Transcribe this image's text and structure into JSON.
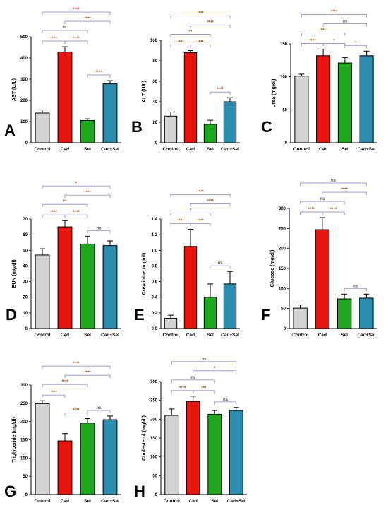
{
  "colors": {
    "Control": "#d3d3d3",
    "Cad": "#e8150f",
    "Sel": "#1ea81e",
    "Cad+Sel": "#2a8db0",
    "bracket": "#9d8fd6",
    "sig_red": "#e31a1c",
    "sig_brown": "#a0521a",
    "sig_gray": "#555555"
  },
  "chart_data": [
    {
      "panel": "A",
      "type": "bar",
      "categories": [
        "Control",
        "Cad",
        "Sel",
        "Cad+Sel"
      ],
      "values": [
        140,
        428,
        105,
        278
      ],
      "errors": [
        15,
        25,
        8,
        15
      ],
      "ylabel": "AST (U/L)",
      "ylim": [
        0,
        500
      ],
      "yticks": [
        0,
        100,
        200,
        300,
        400,
        500
      ],
      "comparisons": [
        {
          "a": 0,
          "b": 1,
          "label": "****",
          "color": "sig_brown"
        },
        {
          "a": 1,
          "b": 2,
          "label": "****",
          "color": "sig_brown"
        },
        {
          "a": 2,
          "b": 3,
          "label": "****",
          "color": "sig_brown"
        },
        {
          "a": 0,
          "b": 2,
          "label": "**",
          "color": "sig_brown"
        },
        {
          "a": 1,
          "b": 3,
          "label": "****",
          "color": "sig_brown"
        },
        {
          "a": 0,
          "b": 3,
          "label": "****",
          "color": "sig_red"
        }
      ]
    },
    {
      "panel": "B",
      "type": "bar",
      "categories": [
        "Control",
        "Cad",
        "Sel",
        "Cad+Sel"
      ],
      "values": [
        26,
        88,
        18,
        40
      ],
      "errors": [
        4,
        2,
        4,
        4
      ],
      "ylabel": "ALT (U/L)",
      "ylim": [
        0,
        100
      ],
      "yticks": [
        0,
        20,
        40,
        60,
        80,
        100
      ],
      "comparisons": [
        {
          "a": 0,
          "b": 1,
          "label": "****",
          "color": "sig_brown"
        },
        {
          "a": 1,
          "b": 2,
          "label": "****",
          "color": "sig_brown"
        },
        {
          "a": 2,
          "b": 3,
          "label": "****",
          "color": "sig_brown"
        },
        {
          "a": 0,
          "b": 2,
          "label": "**",
          "color": "sig_brown"
        },
        {
          "a": 1,
          "b": 3,
          "label": "****",
          "color": "sig_brown"
        },
        {
          "a": 0,
          "b": 3,
          "label": "****",
          "color": "sig_brown"
        }
      ]
    },
    {
      "panel": "C",
      "type": "bar",
      "categories": [
        "Control",
        "Cad",
        "Sel",
        "Cad+Sel"
      ],
      "values": [
        101,
        132,
        121,
        132
      ],
      "errors": [
        3,
        10,
        8,
        7
      ],
      "ylabel": "Urea (mg/dl)",
      "ylim": [
        0,
        150
      ],
      "yticks": [
        0,
        50,
        100,
        150
      ],
      "comparisons": [
        {
          "a": 0,
          "b": 1,
          "label": "****",
          "color": "sig_brown"
        },
        {
          "a": 1,
          "b": 2,
          "label": "*",
          "color": "sig_brown"
        },
        {
          "a": 2,
          "b": 3,
          "label": "*",
          "color": "sig_brown"
        },
        {
          "a": 0,
          "b": 2,
          "label": "***",
          "color": "sig_brown"
        },
        {
          "a": 1,
          "b": 3,
          "label": "ns",
          "color": "sig_gray"
        },
        {
          "a": 0,
          "b": 3,
          "label": "****",
          "color": "sig_brown"
        }
      ]
    },
    {
      "panel": "D",
      "type": "bar",
      "categories": [
        "Control",
        "Cad",
        "Sel",
        "Cad+Sel"
      ],
      "values": [
        47,
        65,
        54,
        53
      ],
      "errors": [
        4,
        4,
        5,
        3
      ],
      "ylabel": "BUN (mg/dl)",
      "ylim": [
        0,
        70
      ],
      "yticks": [
        0,
        10,
        20,
        30,
        40,
        50,
        60,
        70
      ],
      "comparisons": [
        {
          "a": 0,
          "b": 1,
          "label": "****",
          "color": "sig_brown"
        },
        {
          "a": 1,
          "b": 2,
          "label": "****",
          "color": "sig_brown"
        },
        {
          "a": 2,
          "b": 3,
          "label": "ns",
          "color": "sig_gray"
        },
        {
          "a": 0,
          "b": 2,
          "label": "**",
          "color": "sig_brown"
        },
        {
          "a": 1,
          "b": 3,
          "label": "****",
          "color": "sig_brown"
        },
        {
          "a": 0,
          "b": 3,
          "label": "*",
          "color": "sig_brown"
        }
      ]
    },
    {
      "panel": "E",
      "type": "bar",
      "categories": [
        "Control",
        "Cad",
        "Sel",
        "Cad+Sel"
      ],
      "values": [
        0.13,
        1.05,
        0.4,
        0.57
      ],
      "errors": [
        0.04,
        0.22,
        0.17,
        0.16
      ],
      "ylabel": "Creatinine (mg/dl)",
      "ylim": [
        0,
        1.4
      ],
      "yticks": [
        0.0,
        0.2,
        0.4,
        0.6,
        0.8,
        1.0,
        1.2,
        1.4
      ],
      "comparisons": [
        {
          "a": 0,
          "b": 1,
          "label": "****",
          "color": "sig_brown"
        },
        {
          "a": 1,
          "b": 2,
          "label": "****",
          "color": "sig_brown"
        },
        {
          "a": 2,
          "b": 3,
          "label": "ns",
          "color": "sig_gray"
        },
        {
          "a": 0,
          "b": 2,
          "label": "*",
          "color": "sig_brown"
        },
        {
          "a": 1,
          "b": 3,
          "label": "****",
          "color": "sig_brown"
        },
        {
          "a": 0,
          "b": 3,
          "label": "****",
          "color": "sig_brown"
        }
      ]
    },
    {
      "panel": "F",
      "type": "bar",
      "categories": [
        "Control",
        "Cad",
        "Sel",
        "Cad+Sel"
      ],
      "values": [
        51,
        247,
        74,
        76
      ],
      "errors": [
        8,
        30,
        12,
        10
      ],
      "ylabel": "Glucose (mg/dl)",
      "ylim": [
        0,
        300
      ],
      "yticks": [
        0,
        50,
        100,
        150,
        200,
        250,
        300
      ],
      "comparisons": [
        {
          "a": 0,
          "b": 1,
          "label": "****",
          "color": "sig_brown"
        },
        {
          "a": 1,
          "b": 2,
          "label": "****",
          "color": "sig_brown"
        },
        {
          "a": 2,
          "b": 3,
          "label": "ns",
          "color": "sig_gray"
        },
        {
          "a": 0,
          "b": 2,
          "label": "ns",
          "color": "sig_gray"
        },
        {
          "a": 1,
          "b": 3,
          "label": "****",
          "color": "sig_brown"
        },
        {
          "a": 0,
          "b": 3,
          "label": "ns",
          "color": "sig_gray"
        }
      ]
    },
    {
      "panel": "G",
      "type": "bar",
      "categories": [
        "Control",
        "Cad",
        "Sel",
        "Cad+Sel"
      ],
      "values": [
        249,
        147,
        196,
        205
      ],
      "errors": [
        8,
        20,
        12,
        10
      ],
      "ylabel": "Triglyceride (mg/dl)",
      "ylim": [
        0,
        300
      ],
      "yticks": [
        0,
        50,
        100,
        150,
        200,
        250,
        300
      ],
      "comparisons": [
        {
          "a": 0,
          "b": 1,
          "label": "****",
          "color": "sig_brown"
        },
        {
          "a": 1,
          "b": 2,
          "label": "****",
          "color": "sig_brown"
        },
        {
          "a": 2,
          "b": 3,
          "label": "ns",
          "color": "sig_gray"
        },
        {
          "a": 0,
          "b": 2,
          "label": "****",
          "color": "sig_brown"
        },
        {
          "a": 1,
          "b": 3,
          "label": "****",
          "color": "sig_brown"
        },
        {
          "a": 0,
          "b": 3,
          "label": "****",
          "color": "sig_brown"
        }
      ]
    },
    {
      "panel": "H",
      "type": "bar",
      "categories": [
        "Control",
        "Cad",
        "Sel",
        "Cad+Sel"
      ],
      "values": [
        210,
        247,
        213,
        223
      ],
      "errors": [
        17,
        14,
        10,
        8
      ],
      "ylabel": "Cholesterol (mg/dl)",
      "ylim": [
        0,
        300
      ],
      "yticks": [
        0,
        50,
        100,
        150,
        200,
        250,
        300
      ],
      "comparisons": [
        {
          "a": 0,
          "b": 1,
          "label": "****",
          "color": "sig_brown"
        },
        {
          "a": 1,
          "b": 2,
          "label": "***",
          "color": "sig_brown"
        },
        {
          "a": 2,
          "b": 3,
          "label": "ns",
          "color": "sig_gray"
        },
        {
          "a": 0,
          "b": 2,
          "label": "ns",
          "color": "sig_gray"
        },
        {
          "a": 1,
          "b": 3,
          "label": "*",
          "color": "sig_brown"
        },
        {
          "a": 0,
          "b": 3,
          "label": "ns",
          "color": "sig_gray"
        }
      ]
    }
  ]
}
